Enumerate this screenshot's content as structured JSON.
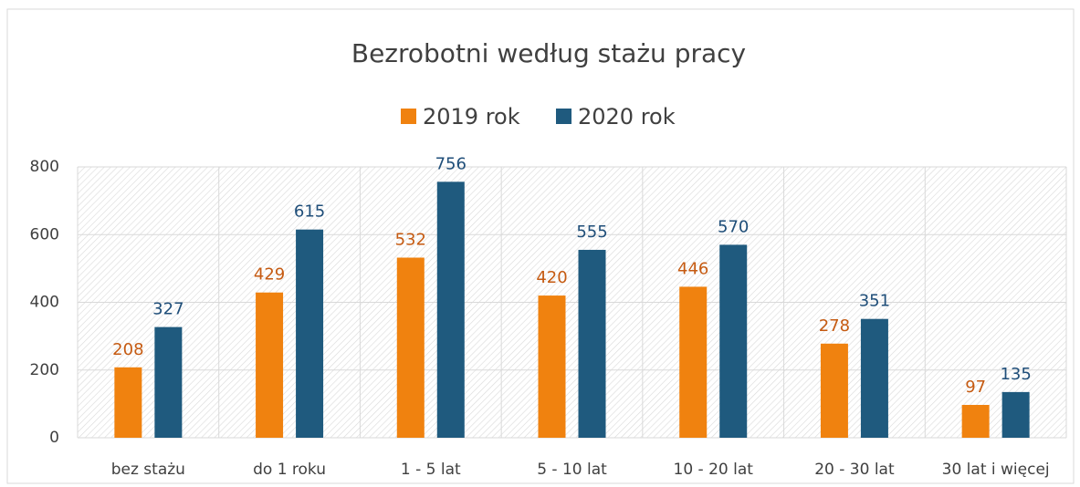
{
  "chart_data": {
    "type": "bar",
    "title": "Bezrobotni według stażu pracy",
    "categories": [
      "bez stażu",
      "do 1 roku",
      "1 - 5 lat",
      "5 - 10 lat",
      "10 - 20 lat",
      "20 - 30 lat",
      "30 lat i więcej"
    ],
    "series": [
      {
        "name": "2019 rok",
        "color": "#f0820f",
        "label_color": "#c55a11",
        "values": [
          208,
          429,
          532,
          420,
          446,
          278,
          97
        ]
      },
      {
        "name": "2020 rok",
        "color": "#1f5a7e",
        "label_color": "#1f4e79",
        "values": [
          327,
          615,
          756,
          555,
          570,
          351,
          135
        ]
      }
    ],
    "ylim": [
      0,
      800
    ],
    "yticks": [
      0,
      200,
      400,
      600,
      800
    ],
    "grid": true,
    "legend": "top"
  }
}
